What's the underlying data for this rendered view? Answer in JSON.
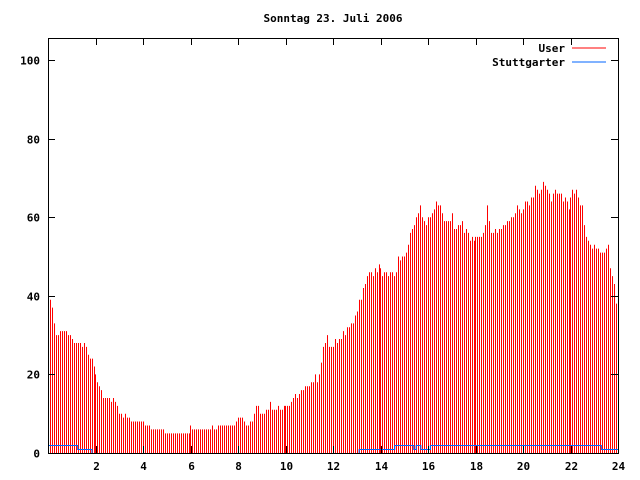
{
  "chart_data": {
    "type": "bar",
    "title": "Sonntag 23. Juli 2006",
    "xlabel": "",
    "ylabel": "",
    "xlim": [
      0,
      24
    ],
    "ylim": [
      0,
      105.6
    ],
    "xticks": [
      "2",
      "4",
      "6",
      "8",
      "10",
      "12",
      "14",
      "16",
      "18",
      "20",
      "22",
      "24"
    ],
    "xtick_values": [
      2,
      4,
      6,
      8,
      10,
      12,
      14,
      16,
      18,
      20,
      22,
      24
    ],
    "yticks": [
      "0",
      "20",
      "40",
      "60",
      "80",
      "100"
    ],
    "ytick_values": [
      0,
      20,
      40,
      60,
      80,
      100
    ],
    "legend_position": "top-right",
    "interval_hours": 0.0833333,
    "series": [
      {
        "name": "User",
        "style": "impulses",
        "color": "#ff0000",
        "values": [
          39,
          39,
          37,
          33,
          30,
          30,
          31,
          31,
          31,
          31,
          30,
          30,
          29,
          28,
          28,
          28,
          28,
          27,
          28,
          27,
          25,
          24,
          24,
          22,
          20,
          18,
          17,
          16,
          14,
          14,
          14,
          14,
          13,
          14,
          13,
          12,
          10,
          10,
          9,
          10,
          9,
          9,
          8,
          8,
          8,
          8,
          8,
          8,
          8,
          7,
          7,
          7,
          6,
          6,
          6,
          6,
          6,
          6,
          6,
          5,
          5,
          5,
          5,
          5,
          5,
          5,
          5,
          5,
          5,
          5,
          5,
          5,
          7,
          6,
          6,
          6,
          6,
          6,
          6,
          6,
          6,
          6,
          6,
          7,
          6,
          6,
          7,
          7,
          7,
          7,
          7,
          7,
          7,
          7,
          7,
          8,
          9,
          9,
          9,
          8,
          7,
          7,
          8,
          8,
          10,
          12,
          12,
          10,
          10,
          10,
          11,
          11,
          13,
          11,
          11,
          11,
          12,
          11,
          11,
          12,
          12,
          12,
          12,
          13,
          14,
          15,
          14,
          15,
          16,
          16,
          17,
          17,
          17,
          18,
          18,
          20,
          18,
          20,
          23,
          27,
          28,
          30,
          27,
          27,
          27,
          29,
          28,
          29,
          29,
          31,
          30,
          32,
          32,
          33,
          33,
          35,
          36,
          39,
          39,
          42,
          43,
          45,
          46,
          46,
          45,
          47,
          46,
          48,
          47,
          45,
          46,
          46,
          45,
          46,
          46,
          45,
          46,
          50,
          49,
          50,
          50,
          51,
          53,
          56,
          57,
          58,
          60,
          61,
          63,
          60,
          59,
          58,
          60,
          60,
          61,
          62,
          64,
          63,
          63,
          61,
          59,
          59,
          59,
          59,
          61,
          57,
          57,
          58,
          58,
          59,
          56,
          57,
          56,
          54,
          55,
          54,
          55,
          55,
          55,
          55,
          56,
          58,
          63,
          59,
          56,
          56,
          57,
          56,
          57,
          57,
          58,
          58,
          59,
          59,
          60,
          60,
          61,
          63,
          62,
          61,
          62,
          64,
          64,
          63,
          65,
          65,
          68,
          67,
          66,
          67,
          69,
          68,
          67,
          66,
          64,
          66,
          67,
          66,
          66,
          66,
          64,
          65,
          64,
          62,
          65,
          67,
          66,
          67,
          65,
          63,
          63,
          58,
          55,
          54,
          53,
          52,
          53,
          52,
          52,
          51,
          51,
          51,
          52,
          53,
          47,
          45,
          43,
          38
        ]
      },
      {
        "name": "Stuttgarter",
        "style": "steps",
        "color": "#0066ff",
        "points": [
          [
            0,
            2
          ],
          [
            1.25,
            1
          ],
          [
            1.85,
            0
          ],
          [
            13.1,
            1
          ],
          [
            14.6,
            2
          ],
          [
            15.4,
            1
          ],
          [
            15.5,
            2
          ],
          [
            15.7,
            1
          ],
          [
            16.1,
            2
          ],
          [
            23.3,
            1
          ],
          [
            24,
            1
          ]
        ]
      }
    ]
  }
}
